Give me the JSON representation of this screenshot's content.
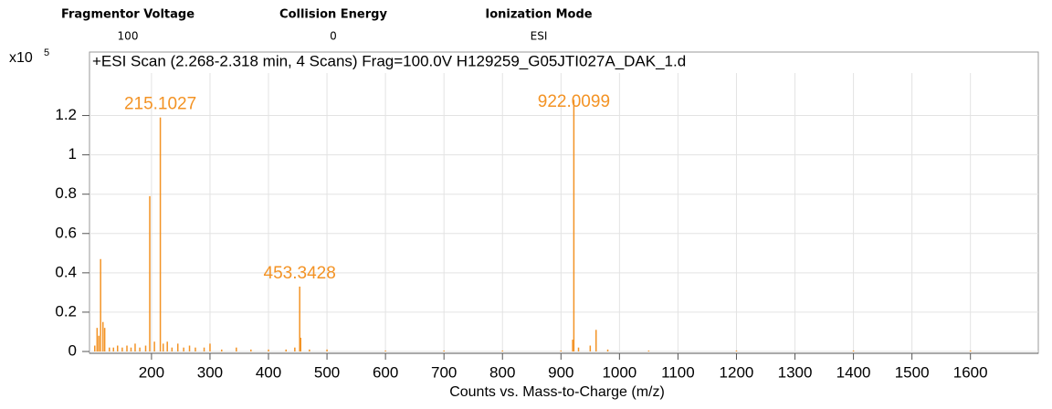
{
  "header": {
    "fields": [
      {
        "label": "Fragmentor Voltage",
        "value": "100"
      },
      {
        "label": "Collision Energy",
        "value": "0"
      },
      {
        "label": "Ionization Mode",
        "value": "ESI"
      }
    ]
  },
  "chart_data": {
    "type": "bar",
    "title": "+ESI Scan (2.268-2.318 min, 4 Scans) Frag=100.0V H129259_G05JTI027A_DAK_1.d",
    "xlabel": "Counts vs. Mass-to-Charge (m/z)",
    "y_multiplier": {
      "base": "x10",
      "exponent": "5"
    },
    "color": "#f39325",
    "grid": true,
    "xlim": [
      94,
      1716
    ],
    "xticks": [
      200,
      300,
      400,
      500,
      600,
      700,
      800,
      900,
      1000,
      1100,
      1200,
      1300,
      1400,
      1500,
      1600
    ],
    "ylim": [
      0,
      1.3
    ],
    "yticks": [
      0,
      0.2,
      0.4,
      0.6,
      0.8,
      1,
      1.2
    ],
    "x": [
      103,
      107,
      110,
      113,
      117,
      120,
      128,
      135,
      142,
      150,
      158,
      165,
      172,
      180,
      190,
      197,
      205,
      215.1027,
      220,
      227,
      235,
      245,
      255,
      265,
      275,
      290,
      300,
      320,
      345,
      370,
      400,
      430,
      445,
      453.3428,
      455,
      470,
      500,
      600,
      700,
      800,
      900,
      920,
      922.0099,
      930,
      950,
      960,
      980,
      1050,
      1200,
      1400,
      1600
    ],
    "values": [
      0.03,
      0.12,
      0.08,
      0.47,
      0.15,
      0.12,
      0.02,
      0.02,
      0.03,
      0.02,
      0.03,
      0.02,
      0.04,
      0.02,
      0.03,
      0.79,
      0.05,
      1.19,
      0.04,
      0.05,
      0.02,
      0.04,
      0.02,
      0.03,
      0.02,
      0.02,
      0.04,
      0.01,
      0.02,
      0.01,
      0.01,
      0.01,
      0.02,
      0.33,
      0.07,
      0.01,
      0.01,
      0.005,
      0.005,
      0.005,
      0.005,
      0.06,
      1.28,
      0.02,
      0.03,
      0.11,
      0.01,
      0.005,
      0.005,
      0.005,
      0.005
    ],
    "annotations": [
      "215.1027",
      "922.0099",
      "453.3428"
    ]
  }
}
